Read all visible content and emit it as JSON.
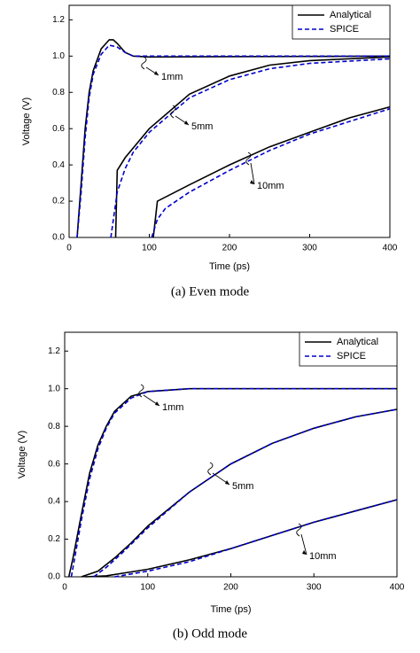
{
  "chart_data": [
    {
      "type": "line",
      "caption": "(a) Even mode",
      "xlabel": "Time (ps)",
      "ylabel": "Voltage (V)",
      "xlim": [
        0,
        400
      ],
      "ylim": [
        0,
        1.28
      ],
      "xticks": [
        0,
        100,
        200,
        300,
        400
      ],
      "yticks": [
        {
          "value": 0,
          "label": "0.0"
        },
        {
          "value": 0.2,
          "label": "0.2"
        },
        {
          "value": 0.4,
          "label": "0.4"
        },
        {
          "value": 0.6,
          "label": "0.6"
        },
        {
          "value": 0.8,
          "label": "0.8"
        },
        {
          "value": 1.0,
          "label": "1.0"
        },
        {
          "value": 1.2,
          "label": "1.2"
        }
      ],
      "legend": "upper right",
      "annotations": [
        "1mm",
        "5mm",
        "10mm"
      ],
      "series": [
        {
          "name": "Analytical",
          "color": "#000000",
          "dash": false,
          "x": [
            10,
            15,
            20,
            25,
            30,
            40,
            50,
            55,
            60,
            70,
            80,
            100,
            400,
            null,
            58,
            60,
            70,
            100,
            150,
            200,
            250,
            300,
            400,
            null,
            105,
            110,
            150,
            200,
            250,
            300,
            350,
            400
          ],
          "values": [
            0,
            0.3,
            0.6,
            0.8,
            0.92,
            1.04,
            1.09,
            1.09,
            1.07,
            1.02,
            1.0,
            0.995,
            1.0,
            null,
            0,
            0.37,
            0.44,
            0.6,
            0.79,
            0.89,
            0.95,
            0.975,
            0.995,
            null,
            0,
            0.2,
            0.29,
            0.4,
            0.5,
            0.58,
            0.66,
            0.72
          ]
        },
        {
          "name": "SPICE",
          "color": "#0000cc",
          "dash": true,
          "x": [
            10,
            15,
            20,
            25,
            30,
            40,
            50,
            60,
            70,
            80,
            100,
            400,
            null,
            52,
            60,
            70,
            80,
            100,
            150,
            200,
            250,
            300,
            400,
            null,
            103,
            110,
            120,
            150,
            200,
            250,
            300,
            350,
            400
          ],
          "values": [
            0,
            0.25,
            0.55,
            0.77,
            0.9,
            1.01,
            1.06,
            1.05,
            1.02,
            1.0,
            1.0,
            1.0,
            null,
            0,
            0.25,
            0.38,
            0.47,
            0.58,
            0.77,
            0.87,
            0.93,
            0.96,
            0.985,
            null,
            0,
            0.1,
            0.16,
            0.25,
            0.37,
            0.48,
            0.57,
            0.64,
            0.71
          ]
        }
      ]
    },
    {
      "type": "line",
      "caption": "(b) Odd mode",
      "xlabel": "Time (ps)",
      "ylabel": "Voltage (V)",
      "xlim": [
        0,
        400
      ],
      "ylim": [
        0,
        1.3
      ],
      "xticks": [
        0,
        100,
        200,
        300,
        400
      ],
      "yticks": [
        {
          "value": 0,
          "label": "0.0"
        },
        {
          "value": 0.2,
          "label": "0.2"
        },
        {
          "value": 0.4,
          "label": "0.4"
        },
        {
          "value": 0.6,
          "label": "0.6"
        },
        {
          "value": 0.8,
          "label": "0.8"
        },
        {
          "value": 1.0,
          "label": "1.0"
        },
        {
          "value": 1.2,
          "label": "1.2"
        }
      ],
      "legend": "upper right",
      "annotations": [
        "1mm",
        "5mm",
        "10mm"
      ],
      "series": [
        {
          "name": "Analytical",
          "color": "#000000",
          "dash": false,
          "x": [
            5,
            10,
            20,
            30,
            40,
            50,
            60,
            80,
            100,
            150,
            400,
            null,
            20,
            40,
            60,
            80,
            100,
            150,
            200,
            250,
            300,
            350,
            400,
            null,
            25,
            50,
            100,
            150,
            200,
            250,
            300,
            350,
            400
          ],
          "values": [
            0,
            0.1,
            0.33,
            0.55,
            0.7,
            0.8,
            0.88,
            0.96,
            0.985,
            1.0,
            1.0,
            null,
            0,
            0.03,
            0.1,
            0.18,
            0.27,
            0.45,
            0.6,
            0.71,
            0.79,
            0.85,
            0.89,
            null,
            0,
            0.005,
            0.04,
            0.09,
            0.15,
            0.22,
            0.29,
            0.35,
            0.41
          ]
        },
        {
          "name": "SPICE",
          "color": "#0000cc",
          "dash": true,
          "x": [
            8,
            12,
            20,
            30,
            40,
            50,
            60,
            80,
            100,
            150,
            400,
            null,
            35,
            50,
            70,
            100,
            150,
            200,
            250,
            300,
            350,
            400,
            null,
            60,
            100,
            150,
            200,
            250,
            300,
            350,
            400
          ],
          "values": [
            0,
            0.1,
            0.3,
            0.52,
            0.68,
            0.79,
            0.87,
            0.95,
            0.985,
            1.0,
            1.0,
            null,
            0,
            0.05,
            0.13,
            0.26,
            0.45,
            0.6,
            0.71,
            0.79,
            0.85,
            0.89,
            null,
            0,
            0.03,
            0.08,
            0.15,
            0.22,
            0.29,
            0.35,
            0.41
          ]
        }
      ]
    }
  ]
}
